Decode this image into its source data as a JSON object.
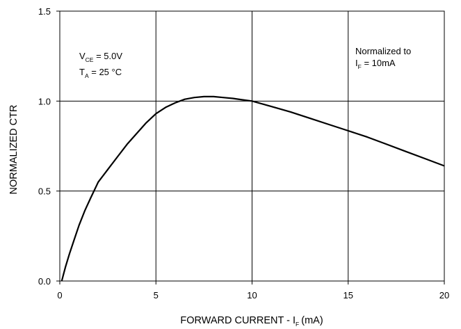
{
  "chart_data": {
    "type": "line",
    "title": "",
    "xlabel": {
      "main": "FORWARD CURRENT - I",
      "sub": "F",
      "unit": "(mA)"
    },
    "ylabel": "NORMALIZED CTR",
    "xlim": [
      0,
      20
    ],
    "ylim": [
      0,
      1.5
    ],
    "x_ticks": [
      0,
      5,
      10,
      15,
      20
    ],
    "y_ticks": [
      0.0,
      0.5,
      1.0,
      1.5
    ],
    "x_tick_labels": [
      "0",
      "5",
      "10",
      "15",
      "20"
    ],
    "y_tick_labels": [
      "0.0",
      "0.5",
      "1.0",
      "1.5"
    ],
    "grid": true,
    "series": [
      {
        "x": [
          0.1,
          0.2,
          0.3,
          0.5,
          0.75,
          1.0,
          1.3,
          1.6,
          2.0,
          2.5,
          3.0,
          3.5,
          4.0,
          4.5,
          5.0,
          5.5,
          6.0,
          6.5,
          7.0,
          7.5,
          8.0,
          8.5,
          9.0,
          9.5,
          10.0,
          11.0,
          12.0,
          13.0,
          14.0,
          15.0,
          16.0,
          17.0,
          18.0,
          19.0,
          20.0
        ],
        "y": [
          0.0,
          0.04,
          0.08,
          0.15,
          0.23,
          0.31,
          0.39,
          0.46,
          0.55,
          0.62,
          0.69,
          0.76,
          0.82,
          0.88,
          0.93,
          0.965,
          0.99,
          1.01,
          1.02,
          1.025,
          1.025,
          1.02,
          1.015,
          1.007,
          1.0,
          0.97,
          0.94,
          0.905,
          0.87,
          0.835,
          0.8,
          0.76,
          0.72,
          0.68,
          0.64
        ],
        "color": "#000000"
      }
    ],
    "annotations": [
      {
        "main": "V",
        "sub": "CE",
        "rest": " = 5.0V"
      },
      {
        "main": "T",
        "sub": "A",
        "rest": " = 25 °C"
      },
      {
        "line1": "Normalized to",
        "main": "I",
        "sub": "F",
        "rest": " = 10mA"
      }
    ]
  }
}
